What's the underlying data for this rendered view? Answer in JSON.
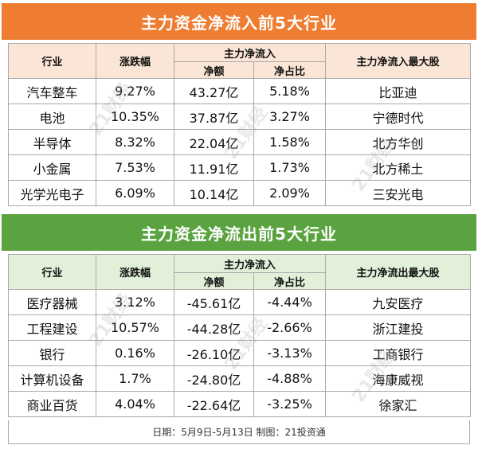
{
  "inflow": {
    "title": "主力资金净流入前5大行业",
    "headers": {
      "industry": "行业",
      "change": "涨跌幅",
      "net_flow_group": "主力净流入",
      "amount": "净额",
      "ratio": "净占比",
      "top_stock": "主力净流入最大股"
    },
    "rows": [
      {
        "industry": "汽车整车",
        "change": "9.27%",
        "amount": "43.27亿",
        "ratio": "5.18%",
        "stock": "比亚迪"
      },
      {
        "industry": "电池",
        "change": "10.35%",
        "amount": "37.87亿",
        "ratio": "3.27%",
        "stock": "宁德时代"
      },
      {
        "industry": "半导体",
        "change": "8.32%",
        "amount": "22.04亿",
        "ratio": "1.58%",
        "stock": "北方华创"
      },
      {
        "industry": "小金属",
        "change": "7.53%",
        "amount": "11.91亿",
        "ratio": "1.73%",
        "stock": "北方稀土"
      },
      {
        "industry": "光学光电子",
        "change": "6.09%",
        "amount": "10.14亿",
        "ratio": "2.09%",
        "stock": "三安光电"
      }
    ]
  },
  "outflow": {
    "title": "主力资金净流出前5大行业",
    "headers": {
      "industry": "行业",
      "change": "涨跌幅",
      "net_flow_group": "主力净流入",
      "amount": "净额",
      "ratio": "净占比",
      "top_stock": "主力净流出最大股"
    },
    "rows": [
      {
        "industry": "医疗器械",
        "change": "3.12%",
        "amount": "-45.61亿",
        "ratio": "-4.44%",
        "stock": "九安医疗"
      },
      {
        "industry": "工程建设",
        "change": "10.57%",
        "amount": "-44.28亿",
        "ratio": "-2.66%",
        "stock": "浙江建投"
      },
      {
        "industry": "银行",
        "change": "0.16%",
        "amount": "-26.10亿",
        "ratio": "-3.13%",
        "stock": "工商银行"
      },
      {
        "industry": "计算机设备",
        "change": "1.7%",
        "amount": "-24.80亿",
        "ratio": "-4.88%",
        "stock": "海康威视"
      },
      {
        "industry": "商业百货",
        "change": "4.04%",
        "amount": "-22.64亿",
        "ratio": "-3.25%",
        "stock": "徐家汇"
      }
    ]
  },
  "footer": "日期：5月9日-5月13日 制图：21投资通",
  "watermark": "21财经",
  "colors": {
    "inflow_banner": "#ee7d31",
    "inflow_header": "#fbe5d6",
    "outflow_banner": "#5ba341",
    "outflow_header": "#e2f0d9"
  }
}
